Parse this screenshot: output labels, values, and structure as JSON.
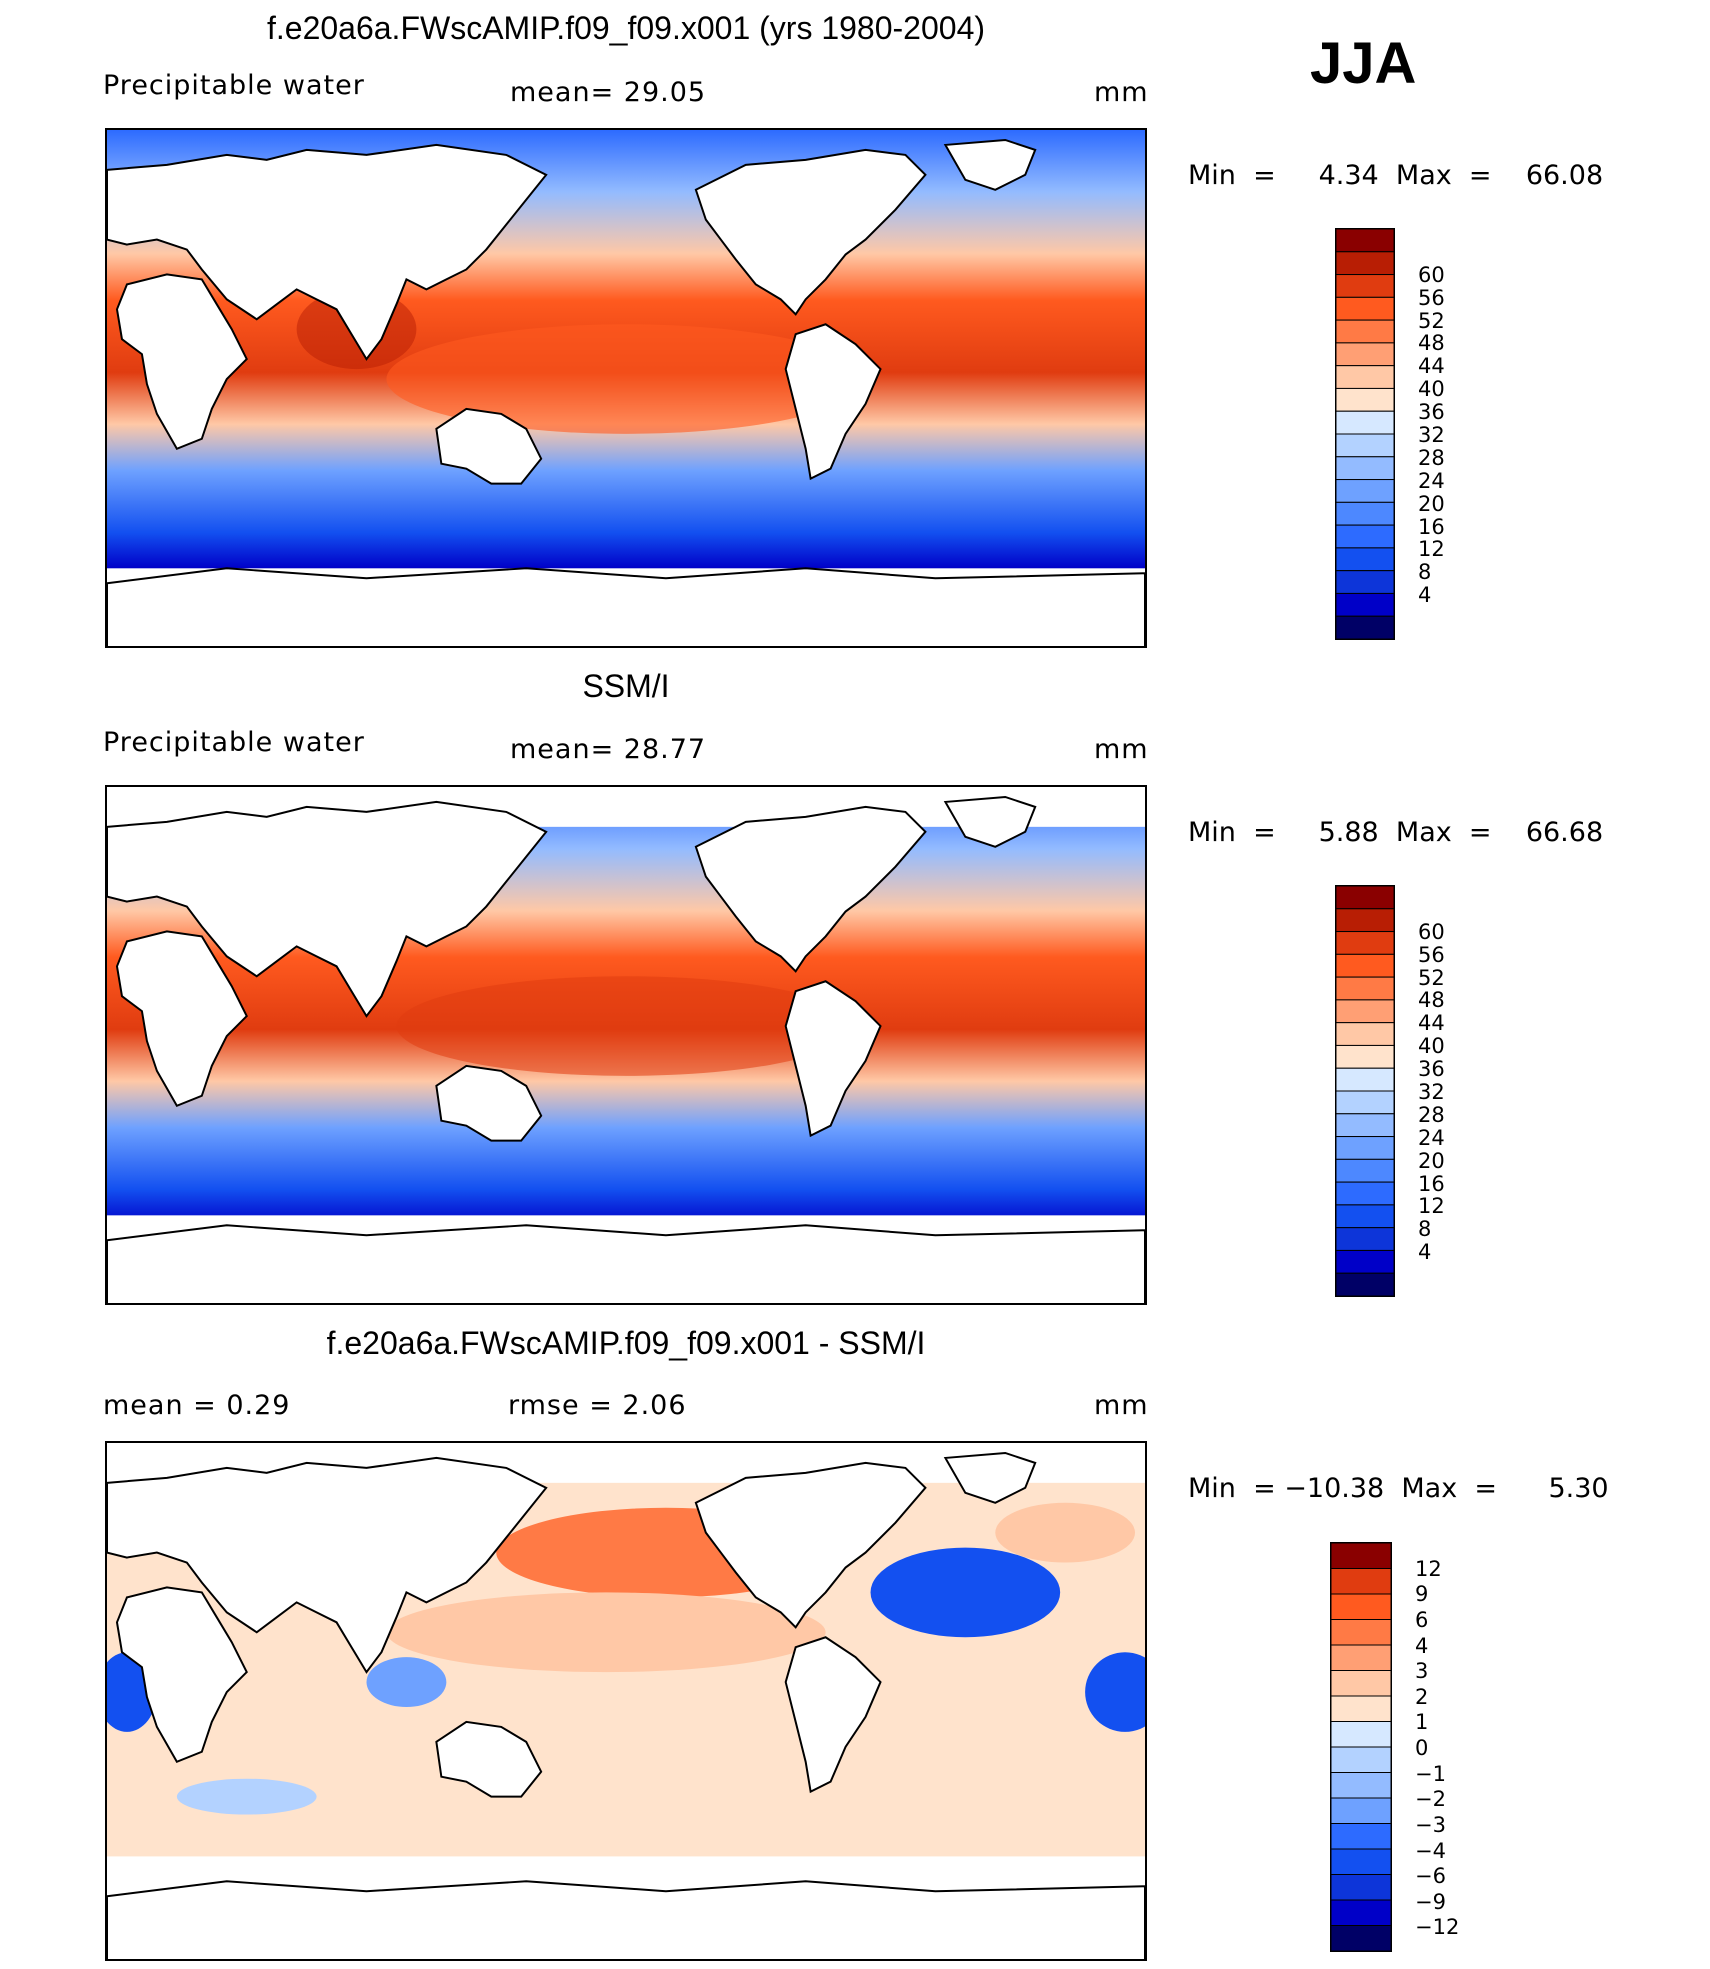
{
  "season": "JJA",
  "colors": {
    "abs_scale": [
      "#000066",
      "#0000c8",
      "#0d35d9",
      "#1350f0",
      "#2d6bff",
      "#4d88ff",
      "#6ea1ff",
      "#93bbff",
      "#b3d2ff",
      "#d6e8ff",
      "#ffe3cc",
      "#ffc8a6",
      "#ff9f74",
      "#ff7a45",
      "#ff5a1f",
      "#e03c10",
      "#b81e04",
      "#8a0000"
    ],
    "diff_scale": [
      "#000066",
      "#0000c8",
      "#0d35d9",
      "#1350f0",
      "#2d6bff",
      "#6ea1ff",
      "#93bbff",
      "#b3d2ff",
      "#d6e8ff",
      "#ffe3cc",
      "#ffc8a6",
      "#ff9f74",
      "#ff7a45",
      "#ff5a1f",
      "#e03c10",
      "#8a0000"
    ]
  },
  "panels": [
    {
      "title": "f.e20a6a.FWscAMIP.f09_f09.x001 (yrs 1980-2004)",
      "left_label": "Precipitable  water",
      "center_label": "mean=   29.05",
      "units": "mm",
      "minmax": "Min  =     4.34  Max  =    66.08",
      "colorbar_ticks": [
        "60",
        "56",
        "52",
        "48",
        "44",
        "40",
        "36",
        "32",
        "28",
        "24",
        "20",
        "16",
        "12",
        "8",
        "4"
      ]
    },
    {
      "title": "SSM/I",
      "left_label": "Precipitable  water",
      "center_label": "mean=   28.77",
      "units": "mm",
      "minmax": "Min  =     5.88  Max  =    66.68",
      "colorbar_ticks": [
        "60",
        "56",
        "52",
        "48",
        "44",
        "40",
        "36",
        "32",
        "28",
        "24",
        "20",
        "16",
        "12",
        "8",
        "4"
      ]
    },
    {
      "title": "f.e20a6a.FWscAMIP.f09_f09.x001 - SSM/I",
      "left_label": "mean  =     0.29",
      "center_label": "rmse  =     2.06",
      "units": "mm",
      "minmax": "Min  = −10.38  Max  =      5.30",
      "colorbar_ticks": [
        "12",
        "9",
        "6",
        "4",
        "3",
        "2",
        "1",
        "0",
        "−1",
        "−2",
        "−3",
        "−4",
        "−6",
        "−9",
        "−12"
      ]
    }
  ]
}
